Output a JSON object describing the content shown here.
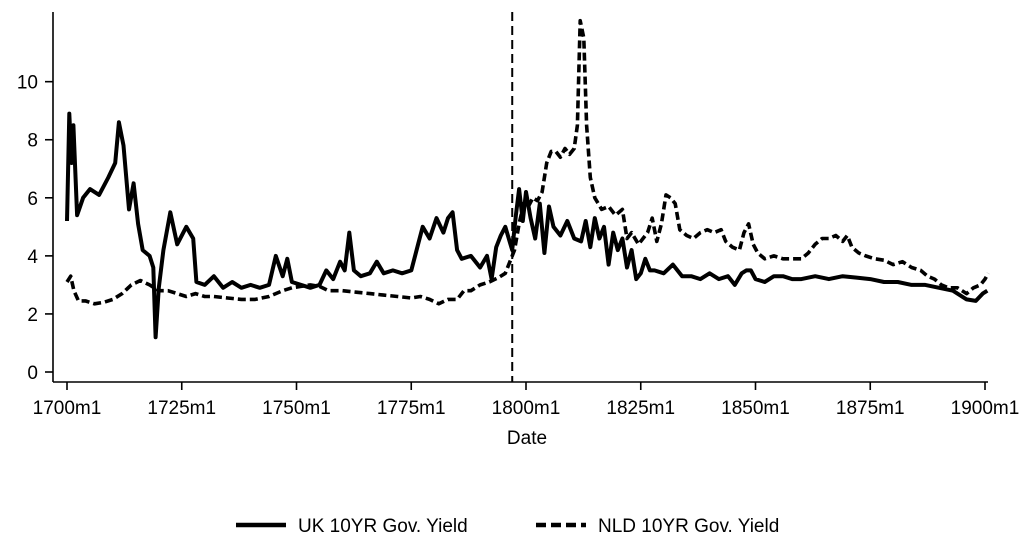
{
  "chart_data": {
    "type": "line",
    "title": "",
    "xlabel": "Date",
    "ylabel": "",
    "x_unit": "year (monthly data)",
    "xlim": [
      1700,
      1901
    ],
    "ylim": [
      0,
      12.4
    ],
    "x_ticks": [
      1700,
      1725,
      1750,
      1775,
      1800,
      1825,
      1850,
      1875,
      1900
    ],
    "x_tick_labels": [
      "1700m1",
      "1725m1",
      "1750m1",
      "1775m1",
      "1800m1",
      "1825m1",
      "1850m1",
      "1875m1",
      "1900m1"
    ],
    "y_ticks": [
      0,
      2,
      4,
      6,
      8,
      10
    ],
    "y_tick_labels": [
      "0",
      "2",
      "4",
      "6",
      "8",
      "10"
    ],
    "grid": false,
    "legend_position": "bottom",
    "vertical_line": {
      "x": 1797,
      "style": "dashed"
    },
    "series": [
      {
        "name": "UK 10YR Gov. Yield",
        "style": "solid",
        "color": "#000000",
        "points": [
          [
            1700,
            5.2
          ],
          [
            1700.5,
            8.9
          ],
          [
            1701,
            7.2
          ],
          [
            1701.4,
            8.5
          ],
          [
            1702.2,
            5.4
          ],
          [
            1703.5,
            6.0
          ],
          [
            1705,
            6.3
          ],
          [
            1707,
            6.1
          ],
          [
            1709,
            6.7
          ],
          [
            1710.5,
            7.2
          ],
          [
            1711.3,
            8.6
          ],
          [
            1712.3,
            7.8
          ],
          [
            1713.5,
            5.6
          ],
          [
            1714.5,
            6.5
          ],
          [
            1715.5,
            5.1
          ],
          [
            1716.5,
            4.2
          ],
          [
            1718,
            4.0
          ],
          [
            1718.8,
            3.6
          ],
          [
            1719.3,
            1.2
          ],
          [
            1720,
            2.9
          ],
          [
            1721,
            4.2
          ],
          [
            1722.5,
            5.5
          ],
          [
            1724,
            4.4
          ],
          [
            1726,
            5.0
          ],
          [
            1727.5,
            4.6
          ],
          [
            1728.2,
            3.1
          ],
          [
            1730,
            3.0
          ],
          [
            1732,
            3.3
          ],
          [
            1734,
            2.9
          ],
          [
            1736,
            3.1
          ],
          [
            1738,
            2.9
          ],
          [
            1740,
            3.0
          ],
          [
            1742,
            2.9
          ],
          [
            1744,
            3.0
          ],
          [
            1745.5,
            4.0
          ],
          [
            1747,
            3.3
          ],
          [
            1748,
            3.9
          ],
          [
            1749,
            3.1
          ],
          [
            1751,
            3.0
          ],
          [
            1753,
            2.9
          ],
          [
            1755,
            3.0
          ],
          [
            1756.5,
            3.5
          ],
          [
            1758,
            3.2
          ],
          [
            1759.5,
            3.8
          ],
          [
            1760.5,
            3.5
          ],
          [
            1761.5,
            4.8
          ],
          [
            1762.5,
            3.5
          ],
          [
            1764,
            3.3
          ],
          [
            1766,
            3.4
          ],
          [
            1767.5,
            3.8
          ],
          [
            1769,
            3.4
          ],
          [
            1771,
            3.5
          ],
          [
            1773,
            3.4
          ],
          [
            1775,
            3.5
          ],
          [
            1776.5,
            4.4
          ],
          [
            1777.5,
            5.0
          ],
          [
            1779,
            4.6
          ],
          [
            1780.5,
            5.3
          ],
          [
            1782,
            4.8
          ],
          [
            1783,
            5.3
          ],
          [
            1784,
            5.5
          ],
          [
            1785,
            4.2
          ],
          [
            1786,
            3.9
          ],
          [
            1788,
            4.0
          ],
          [
            1790,
            3.6
          ],
          [
            1791.5,
            4.0
          ],
          [
            1792.5,
            3.2
          ],
          [
            1793.5,
            4.3
          ],
          [
            1794.5,
            4.7
          ],
          [
            1795.5,
            5.0
          ],
          [
            1797,
            4.2
          ],
          [
            1797.8,
            5.4
          ],
          [
            1798.5,
            6.3
          ],
          [
            1799.3,
            5.2
          ],
          [
            1800,
            6.2
          ],
          [
            1801,
            5.3
          ],
          [
            1802,
            4.6
          ],
          [
            1803,
            5.8
          ],
          [
            1804,
            4.1
          ],
          [
            1805,
            5.7
          ],
          [
            1806,
            5.0
          ],
          [
            1807.5,
            4.7
          ],
          [
            1809,
            5.2
          ],
          [
            1810.5,
            4.6
          ],
          [
            1812,
            4.5
          ],
          [
            1813,
            5.2
          ],
          [
            1814,
            4.3
          ],
          [
            1815,
            5.3
          ],
          [
            1816,
            4.6
          ],
          [
            1817,
            5.0
          ],
          [
            1818,
            3.7
          ],
          [
            1819,
            4.8
          ],
          [
            1820,
            4.2
          ],
          [
            1821,
            4.6
          ],
          [
            1822,
            3.6
          ],
          [
            1823,
            4.2
          ],
          [
            1824,
            3.2
          ],
          [
            1825,
            3.4
          ],
          [
            1826,
            3.9
          ],
          [
            1827,
            3.5
          ],
          [
            1828,
            3.5
          ],
          [
            1830,
            3.4
          ],
          [
            1832,
            3.7
          ],
          [
            1834,
            3.3
          ],
          [
            1836,
            3.3
          ],
          [
            1838,
            3.2
          ],
          [
            1840,
            3.4
          ],
          [
            1842,
            3.2
          ],
          [
            1844,
            3.3
          ],
          [
            1845.5,
            3.0
          ],
          [
            1847,
            3.4
          ],
          [
            1848,
            3.5
          ],
          [
            1849,
            3.5
          ],
          [
            1850,
            3.2
          ],
          [
            1852,
            3.1
          ],
          [
            1854,
            3.3
          ],
          [
            1856,
            3.3
          ],
          [
            1858,
            3.2
          ],
          [
            1860,
            3.2
          ],
          [
            1863,
            3.3
          ],
          [
            1866,
            3.2
          ],
          [
            1869,
            3.3
          ],
          [
            1872,
            3.25
          ],
          [
            1875,
            3.2
          ],
          [
            1878,
            3.1
          ],
          [
            1881,
            3.1
          ],
          [
            1884,
            3.0
          ],
          [
            1887,
            3.0
          ],
          [
            1890,
            2.9
          ],
          [
            1893,
            2.8
          ],
          [
            1896,
            2.5
          ],
          [
            1898,
            2.45
          ],
          [
            1899.5,
            2.7
          ],
          [
            1900.5,
            2.8
          ]
        ]
      },
      {
        "name": "NLD 10YR Gov. Yield",
        "style": "dashed",
        "color": "#000000",
        "points": [
          [
            1700,
            3.1
          ],
          [
            1700.8,
            3.3
          ],
          [
            1701.5,
            2.8
          ],
          [
            1702.5,
            2.45
          ],
          [
            1704,
            2.45
          ],
          [
            1706,
            2.35
          ],
          [
            1708,
            2.4
          ],
          [
            1710,
            2.5
          ],
          [
            1712,
            2.7
          ],
          [
            1714,
            3.0
          ],
          [
            1716,
            3.15
          ],
          [
            1718,
            3.0
          ],
          [
            1720,
            2.8
          ],
          [
            1722,
            2.8
          ],
          [
            1724,
            2.7
          ],
          [
            1726,
            2.6
          ],
          [
            1728,
            2.7
          ],
          [
            1730,
            2.6
          ],
          [
            1732,
            2.6
          ],
          [
            1735,
            2.55
          ],
          [
            1738,
            2.5
          ],
          [
            1741,
            2.5
          ],
          [
            1744,
            2.6
          ],
          [
            1747,
            2.8
          ],
          [
            1749,
            2.9
          ],
          [
            1751,
            2.95
          ],
          [
            1753,
            3.0
          ],
          [
            1755,
            2.95
          ],
          [
            1757,
            2.8
          ],
          [
            1760,
            2.8
          ],
          [
            1763,
            2.75
          ],
          [
            1766,
            2.7
          ],
          [
            1769,
            2.65
          ],
          [
            1772,
            2.6
          ],
          [
            1775,
            2.55
          ],
          [
            1777,
            2.6
          ],
          [
            1779,
            2.5
          ],
          [
            1781,
            2.35
          ],
          [
            1783,
            2.5
          ],
          [
            1785,
            2.5
          ],
          [
            1786.5,
            2.8
          ],
          [
            1788,
            2.8
          ],
          [
            1790,
            3.0
          ],
          [
            1792,
            3.1
          ],
          [
            1794,
            3.25
          ],
          [
            1795.5,
            3.4
          ],
          [
            1796.5,
            3.8
          ],
          [
            1797.5,
            4.2
          ],
          [
            1798.5,
            5.1
          ],
          [
            1799.5,
            5.8
          ],
          [
            1800.5,
            5.7
          ],
          [
            1801.5,
            6.0
          ],
          [
            1802.5,
            5.9
          ],
          [
            1803.5,
            6.2
          ],
          [
            1804.5,
            7.2
          ],
          [
            1805.5,
            7.6
          ],
          [
            1806.5,
            7.6
          ],
          [
            1807.5,
            7.4
          ],
          [
            1808.5,
            7.7
          ],
          [
            1809.5,
            7.5
          ],
          [
            1810.5,
            7.7
          ],
          [
            1811.2,
            8.5
          ],
          [
            1811.8,
            12.1
          ],
          [
            1812.6,
            11.5
          ],
          [
            1813.2,
            8.5
          ],
          [
            1814,
            6.7
          ],
          [
            1815,
            6.0
          ],
          [
            1816.5,
            5.6
          ],
          [
            1818,
            5.7
          ],
          [
            1819.5,
            5.4
          ],
          [
            1821,
            5.6
          ],
          [
            1822,
            4.6
          ],
          [
            1823,
            4.8
          ],
          [
            1824.5,
            4.4
          ],
          [
            1825.5,
            4.6
          ],
          [
            1826.5,
            4.8
          ],
          [
            1827.5,
            5.3
          ],
          [
            1828.5,
            4.5
          ],
          [
            1829.5,
            5.1
          ],
          [
            1830.5,
            6.1
          ],
          [
            1831.5,
            6.0
          ],
          [
            1832.5,
            5.8
          ],
          [
            1833.5,
            4.9
          ],
          [
            1835,
            4.7
          ],
          [
            1836.5,
            4.6
          ],
          [
            1838,
            4.8
          ],
          [
            1839.5,
            4.9
          ],
          [
            1841,
            4.8
          ],
          [
            1842.5,
            4.9
          ],
          [
            1843.5,
            4.5
          ],
          [
            1845,
            4.3
          ],
          [
            1846.5,
            4.2
          ],
          [
            1847.5,
            4.8
          ],
          [
            1848.5,
            5.1
          ],
          [
            1849.5,
            4.4
          ],
          [
            1850.5,
            4.1
          ],
          [
            1852,
            3.9
          ],
          [
            1854,
            4.0
          ],
          [
            1856,
            3.9
          ],
          [
            1858,
            3.9
          ],
          [
            1860,
            3.9
          ],
          [
            1861.5,
            4.1
          ],
          [
            1863,
            4.4
          ],
          [
            1864.5,
            4.6
          ],
          [
            1866,
            4.6
          ],
          [
            1867.5,
            4.7
          ],
          [
            1869,
            4.5
          ],
          [
            1870,
            4.7
          ],
          [
            1871,
            4.3
          ],
          [
            1872.5,
            4.1
          ],
          [
            1874,
            4.0
          ],
          [
            1876,
            3.9
          ],
          [
            1878,
            3.85
          ],
          [
            1880,
            3.7
          ],
          [
            1882,
            3.8
          ],
          [
            1884,
            3.6
          ],
          [
            1886,
            3.5
          ],
          [
            1887.5,
            3.3
          ],
          [
            1889,
            3.2
          ],
          [
            1890.5,
            3.0
          ],
          [
            1892,
            2.9
          ],
          [
            1894,
            2.9
          ],
          [
            1896,
            2.7
          ],
          [
            1897.5,
            2.9
          ],
          [
            1899,
            3.0
          ],
          [
            1900,
            3.2
          ],
          [
            1900.7,
            3.4
          ]
        ]
      }
    ]
  }
}
